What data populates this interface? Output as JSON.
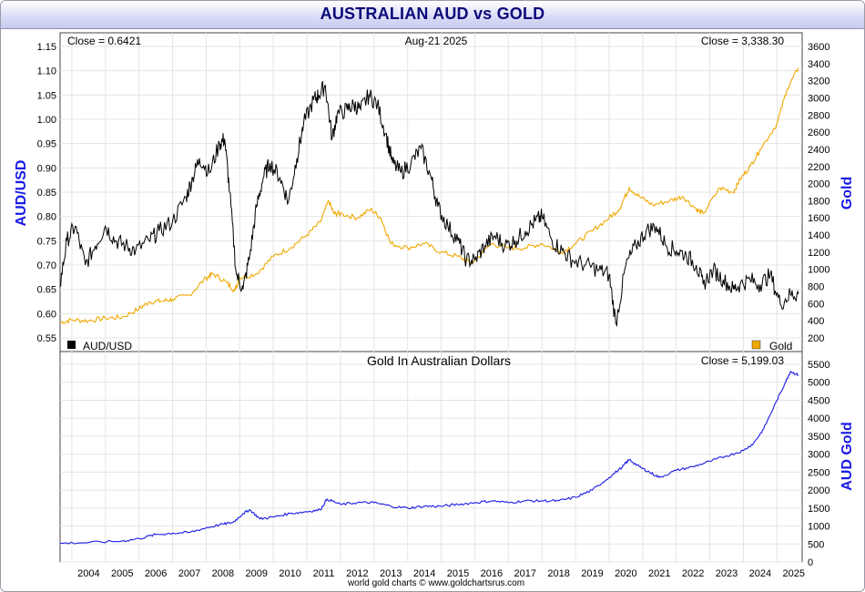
{
  "page_title": "AUSTRALIAN AUD vs GOLD",
  "credit": "world gold charts © www.goldchartsrus.com",
  "colors": {
    "aud": "#000000",
    "gold": "#f0a800",
    "gold_aud": "#1a1ae6",
    "axis_title": "#1a1ae6",
    "title": "#0a0a7a"
  },
  "chart_data": [
    {
      "type": "line",
      "date_line": "Aug-21  2025",
      "left_readout": "Close = 0.6421",
      "right_readout": "Close = 3,338.30",
      "ylabel_left": "AUD/USD",
      "ylabel_right": "Gold",
      "yleft_lim": [
        0.55,
        1.15
      ],
      "yleft_ticks": [
        "0.55",
        "0.60",
        "0.65",
        "0.70",
        "0.75",
        "0.80",
        "0.85",
        "0.90",
        "0.95",
        "1.00",
        "1.05",
        "1.10",
        "1.15"
      ],
      "yright_lim": [
        200,
        3600
      ],
      "yright_ticks": [
        "200",
        "400",
        "600",
        "800",
        "1000",
        "1200",
        "1400",
        "1600",
        "1800",
        "2000",
        "2200",
        "2400",
        "2600",
        "2800",
        "3000",
        "3200",
        "3400",
        "3600"
      ],
      "legend": [
        {
          "name": "AUD/USD",
          "placement": "bottom-left"
        },
        {
          "name": "Gold",
          "placement": "bottom-right"
        }
      ],
      "series": [
        {
          "name": "AUD/USD",
          "axis": "left",
          "x": [
            2003.65,
            2003.85,
            2004.1,
            2004.4,
            2004.7,
            2005.0,
            2005.3,
            2005.6,
            2005.9,
            2006.3,
            2006.6,
            2007.0,
            2007.4,
            2007.6,
            2007.8,
            2008.1,
            2008.4,
            2008.55,
            2008.7,
            2008.9,
            2009.1,
            2009.3,
            2009.5,
            2009.7,
            2009.9,
            2010.2,
            2010.45,
            2010.7,
            2010.9,
            2011.2,
            2011.35,
            2011.55,
            2011.75,
            2011.9,
            2012.2,
            2012.4,
            2012.6,
            2012.85,
            2013.1,
            2013.35,
            2013.55,
            2013.8,
            2014.1,
            2014.4,
            2014.7,
            2014.9,
            2015.2,
            2015.5,
            2015.75,
            2016.0,
            2016.3,
            2016.6,
            2016.9,
            2017.2,
            2017.5,
            2017.8,
            2018.0,
            2018.3,
            2018.6,
            2018.9,
            2019.3,
            2019.7,
            2020.0,
            2020.2,
            2020.5,
            2020.8,
            2021.1,
            2021.4,
            2021.7,
            2022.0,
            2022.3,
            2022.6,
            2022.8,
            2023.1,
            2023.4,
            2023.7,
            2023.9,
            2024.2,
            2024.5,
            2024.8,
            2025.1,
            2025.4,
            2025.64
          ],
          "y": [
            0.66,
            0.75,
            0.78,
            0.7,
            0.74,
            0.78,
            0.75,
            0.74,
            0.73,
            0.75,
            0.77,
            0.79,
            0.84,
            0.88,
            0.92,
            0.89,
            0.95,
            0.96,
            0.85,
            0.68,
            0.65,
            0.72,
            0.82,
            0.88,
            0.91,
            0.88,
            0.83,
            0.92,
            0.99,
            1.04,
            1.05,
            1.07,
            0.96,
            1.01,
            1.02,
            1.03,
            1.02,
            1.05,
            1.03,
            0.97,
            0.91,
            0.89,
            0.91,
            0.94,
            0.88,
            0.82,
            0.78,
            0.75,
            0.71,
            0.71,
            0.74,
            0.76,
            0.74,
            0.75,
            0.77,
            0.79,
            0.8,
            0.75,
            0.73,
            0.71,
            0.7,
            0.69,
            0.68,
            0.58,
            0.7,
            0.74,
            0.77,
            0.78,
            0.74,
            0.73,
            0.72,
            0.7,
            0.66,
            0.69,
            0.67,
            0.65,
            0.66,
            0.67,
            0.66,
            0.68,
            0.62,
            0.64,
            0.64
          ]
        },
        {
          "name": "Gold",
          "axis": "right",
          "x": [
            2003.65,
            2004.0,
            2004.5,
            2005.0,
            2005.5,
            2006.0,
            2006.3,
            2006.7,
            2007.0,
            2007.5,
            2008.0,
            2008.2,
            2008.6,
            2008.85,
            2009.0,
            2009.5,
            2010.0,
            2010.5,
            2011.0,
            2011.4,
            2011.65,
            2011.8,
            2012.0,
            2012.5,
            2012.9,
            2013.2,
            2013.5,
            2014.0,
            2014.5,
            2015.0,
            2015.5,
            2015.9,
            2016.5,
            2017.0,
            2017.5,
            2018.0,
            2018.6,
            2019.0,
            2019.5,
            2020.0,
            2020.3,
            2020.6,
            2020.9,
            2021.3,
            2021.8,
            2022.2,
            2022.6,
            2022.8,
            2023.3,
            2023.7,
            2023.9,
            2024.2,
            2024.5,
            2025.0,
            2025.3,
            2025.64
          ],
          "y": [
            380,
            410,
            400,
            430,
            440,
            540,
            620,
            630,
            650,
            700,
            900,
            950,
            850,
            750,
            900,
            950,
            1150,
            1250,
            1400,
            1550,
            1800,
            1650,
            1650,
            1600,
            1700,
            1600,
            1300,
            1250,
            1300,
            1200,
            1150,
            1070,
            1300,
            1250,
            1250,
            1300,
            1200,
            1300,
            1450,
            1600,
            1700,
            1950,
            1850,
            1750,
            1800,
            1850,
            1700,
            1650,
            1950,
            1900,
            2050,
            2200,
            2400,
            2700,
            3100,
            3350
          ]
        }
      ]
    },
    {
      "type": "line",
      "title": "Gold In Australian Dollars",
      "right_readout": "Close = 5,199.03",
      "ylabel_right": "AUD Gold",
      "yright_lim": [
        0,
        5500
      ],
      "yright_ticks": [
        "0",
        "500",
        "1000",
        "1500",
        "2000",
        "2500",
        "3000",
        "3500",
        "4000",
        "4500",
        "5000",
        "5500"
      ],
      "xlim": [
        2003.65,
        2025.75
      ],
      "x_ticks": [
        "2004",
        "2005",
        "2006",
        "2007",
        "2008",
        "2009",
        "2010",
        "2011",
        "2012",
        "2013",
        "2014",
        "2015",
        "2016",
        "2017",
        "2018",
        "2019",
        "2020",
        "2021",
        "2022",
        "2023",
        "2024",
        "2025"
      ],
      "series": [
        {
          "name": "Gold In Australian Dollars",
          "axis": "right",
          "x": [
            2003.65,
            2004.5,
            2005.5,
            2006.0,
            2006.5,
            2007.0,
            2007.5,
            2008.0,
            2008.5,
            2008.8,
            2009.1,
            2009.3,
            2009.6,
            2010.0,
            2010.5,
            2011.0,
            2011.4,
            2011.6,
            2012.0,
            2012.5,
            2013.0,
            2013.5,
            2014.0,
            2014.5,
            2015.0,
            2015.5,
            2016.0,
            2016.5,
            2017.0,
            2017.5,
            2018.0,
            2018.5,
            2019.0,
            2019.5,
            2020.0,
            2020.4,
            2020.6,
            2020.9,
            2021.2,
            2021.5,
            2022.0,
            2022.5,
            2023.0,
            2023.5,
            2024.0,
            2024.3,
            2024.6,
            2025.0,
            2025.25,
            2025.4,
            2025.64
          ],
          "y": [
            520,
            540,
            580,
            650,
            760,
            800,
            820,
            950,
            1050,
            1100,
            1350,
            1450,
            1200,
            1250,
            1350,
            1400,
            1450,
            1750,
            1600,
            1650,
            1650,
            1550,
            1500,
            1550,
            1550,
            1600,
            1650,
            1700,
            1650,
            1700,
            1700,
            1700,
            1800,
            2000,
            2350,
            2650,
            2850,
            2650,
            2500,
            2350,
            2550,
            2650,
            2800,
            2950,
            3100,
            3300,
            3700,
            4500,
            5000,
            5300,
            5200
          ]
        }
      ]
    }
  ]
}
